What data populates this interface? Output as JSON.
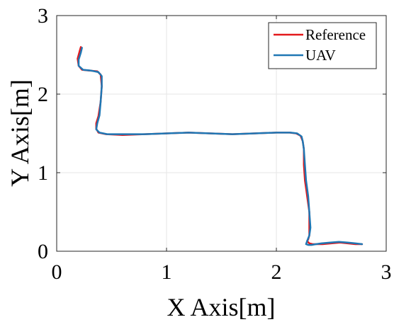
{
  "chart_data": {
    "type": "line",
    "title": "",
    "xlabel": "X Axis[m]",
    "ylabel": "Y Axis[m]",
    "xlim": [
      0,
      3
    ],
    "ylim": [
      0,
      3
    ],
    "x_ticks": [
      "0",
      "1",
      "2",
      "3"
    ],
    "y_ticks": [
      "0",
      "1",
      "2",
      "3"
    ],
    "grid": true,
    "legend_position": "top-right",
    "series": [
      {
        "name": "Reference",
        "color": "#e3191c",
        "x": [
          0.22,
          0.21,
          0.19,
          0.2,
          0.23,
          0.3,
          0.37,
          0.4,
          0.41,
          0.4,
          0.38,
          0.36,
          0.36,
          0.38,
          0.45,
          0.6,
          0.8,
          1.0,
          1.2,
          1.4,
          1.6,
          1.8,
          2.0,
          2.12,
          2.18,
          2.22,
          2.24,
          2.25,
          2.25,
          2.26,
          2.27,
          2.28,
          2.3,
          2.3,
          2.3,
          2.29,
          2.28,
          2.3,
          2.33,
          2.37,
          2.42,
          2.5,
          2.58,
          2.65,
          2.72,
          2.78
        ],
        "y": [
          2.6,
          2.55,
          2.45,
          2.36,
          2.31,
          2.3,
          2.29,
          2.25,
          2.1,
          1.9,
          1.72,
          1.63,
          1.56,
          1.51,
          1.49,
          1.48,
          1.49,
          1.5,
          1.51,
          1.5,
          1.49,
          1.5,
          1.51,
          1.51,
          1.5,
          1.47,
          1.4,
          1.3,
          1.1,
          0.9,
          0.8,
          0.7,
          0.5,
          0.3,
          0.2,
          0.15,
          0.13,
          0.1,
          0.09,
          0.09,
          0.09,
          0.1,
          0.11,
          0.1,
          0.09,
          0.09
        ]
      },
      {
        "name": "UAV",
        "color": "#1f77b4",
        "x": [
          0.23,
          0.22,
          0.2,
          0.2,
          0.24,
          0.31,
          0.38,
          0.41,
          0.41,
          0.4,
          0.39,
          0.37,
          0.36,
          0.39,
          0.46,
          0.61,
          0.8,
          1.0,
          1.2,
          1.4,
          1.6,
          1.8,
          2.0,
          2.13,
          2.19,
          2.23,
          2.24,
          2.25,
          2.26,
          2.27,
          2.28,
          2.29,
          2.3,
          2.31,
          2.3,
          2.28,
          2.27,
          2.29,
          2.32,
          2.36,
          2.41,
          2.49,
          2.57,
          2.65,
          2.72,
          2.78
        ],
        "y": [
          2.59,
          2.53,
          2.44,
          2.36,
          2.31,
          2.3,
          2.28,
          2.23,
          2.1,
          1.9,
          1.73,
          1.63,
          1.55,
          1.51,
          1.49,
          1.49,
          1.49,
          1.5,
          1.51,
          1.5,
          1.49,
          1.5,
          1.51,
          1.51,
          1.5,
          1.46,
          1.4,
          1.3,
          1.1,
          0.9,
          0.8,
          0.7,
          0.5,
          0.3,
          0.2,
          0.13,
          0.09,
          0.08,
          0.08,
          0.09,
          0.1,
          0.11,
          0.12,
          0.11,
          0.1,
          0.09
        ]
      }
    ]
  }
}
